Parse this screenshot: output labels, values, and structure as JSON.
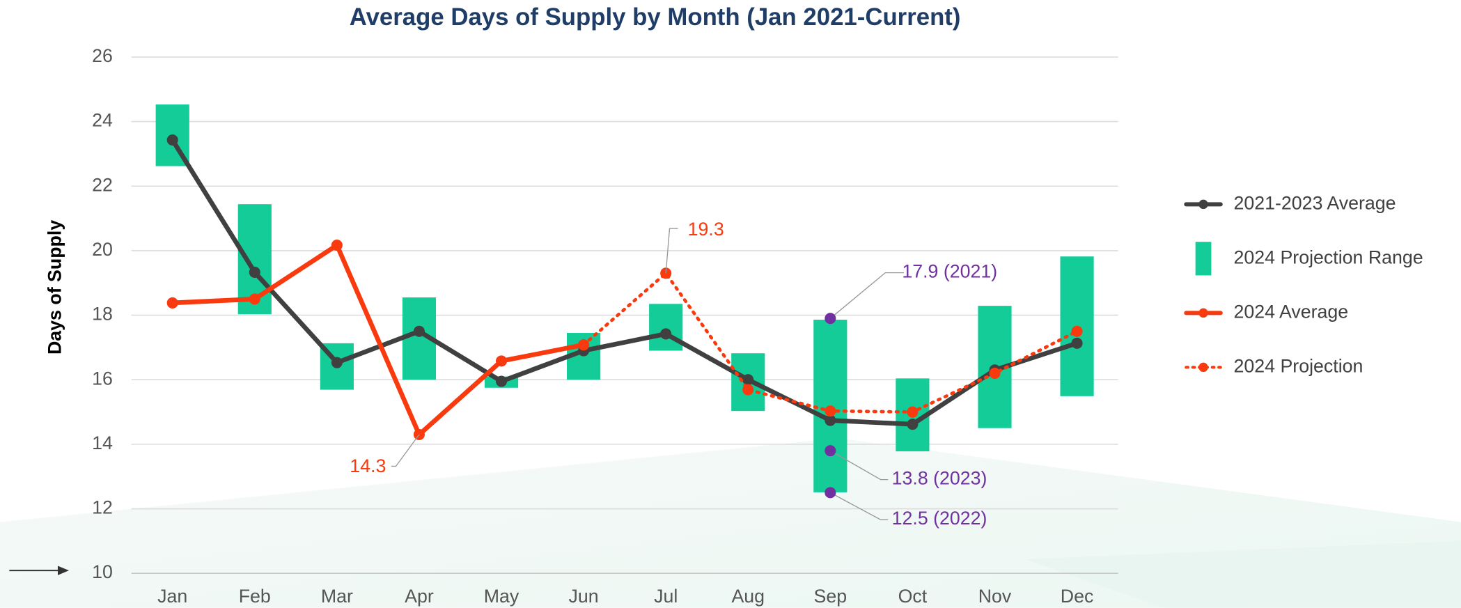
{
  "chart_data": {
    "type": "line",
    "title": "Average Days of Supply by Month (Jan 2021-Current)",
    "y_label": "Days of Supply",
    "categories": [
      "Jan",
      "Feb",
      "Mar",
      "Apr",
      "May",
      "Jun",
      "Jul",
      "Aug",
      "Sep",
      "Oct",
      "Nov",
      "Dec"
    ],
    "ylim": [
      10,
      26
    ],
    "yticks": [
      10,
      12,
      14,
      16,
      18,
      20,
      22,
      24,
      26
    ],
    "grid": true,
    "legend": "right",
    "series": [
      {
        "name": "2021-2023 Average",
        "color": "#404040",
        "style": "solid",
        "values": [
          23.43,
          19.33,
          16.53,
          17.5,
          15.95,
          16.9,
          17.42,
          16.0,
          14.74,
          14.62,
          16.3,
          17.13
        ]
      },
      {
        "name": "2024 Projection Range",
        "color": "#14cc98",
        "style": "range",
        "low": [
          22.62,
          18.03,
          15.69,
          16.0,
          15.75,
          16.0,
          16.9,
          15.03,
          12.51,
          13.78,
          14.5,
          15.49
        ],
        "high": [
          24.53,
          21.44,
          17.13,
          18.55,
          16.1,
          17.45,
          18.35,
          16.82,
          17.86,
          16.04,
          18.29,
          19.82
        ]
      },
      {
        "name": "2024 Average",
        "color": "#f83a0e",
        "style": "solid",
        "values": [
          18.38,
          18.5,
          20.17,
          14.3,
          16.58,
          17.08,
          null,
          null,
          null,
          null,
          null,
          null
        ]
      },
      {
        "name": "2024 Projection",
        "color": "#f83a0e",
        "style": "dotted",
        "values": [
          null,
          null,
          null,
          null,
          null,
          17.08,
          19.3,
          15.69,
          15.03,
          15.0,
          16.2,
          17.5
        ]
      }
    ],
    "annotations": [
      {
        "category": "Sep",
        "value": 17.9,
        "label": "17.9 (2021)",
        "color": "#7030a0"
      },
      {
        "category": "Sep",
        "value": 13.8,
        "label": "13.8 (2023)",
        "color": "#7030a0"
      },
      {
        "category": "Sep",
        "value": 12.5,
        "label": "12.5 (2022)",
        "color": "#7030a0"
      }
    ]
  }
}
